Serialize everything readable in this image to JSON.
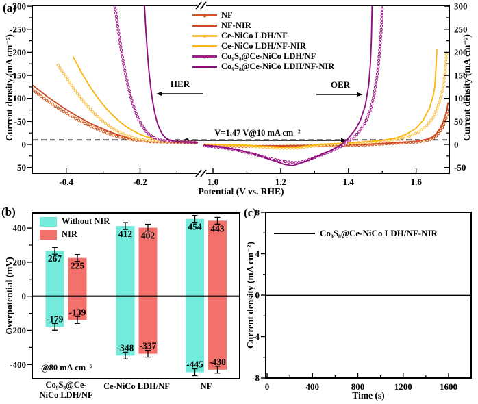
{
  "panel_a": {
    "label": "(a)",
    "xlabel": "Potential (V vs. RHE)",
    "ylabel_left": "Current density (mA cm⁻²)",
    "ylabel_right": "Current density (mA cm⁻²)",
    "her_label": "HER",
    "oer_label": "OER",
    "dashed_label": "V=1.47 V@10 mA cm⁻²",
    "chart_data": {
      "type": "line",
      "x_axis_break": true,
      "x_left_ticks": [
        "-0.4",
        "-0.2"
      ],
      "x_right_ticks": [
        "1.0",
        "1.2",
        "1.4",
        "1.6"
      ],
      "y_left_ticks": [
        "-300",
        "-250",
        "-200",
        "-150",
        "-100",
        "-50",
        "0",
        "50"
      ],
      "y_right_ticks": [
        "300",
        "250",
        "200",
        "150",
        "100",
        "50",
        "0",
        "-50"
      ],
      "x_left_range": [
        -0.49,
        -0.045
      ],
      "x_right_range": [
        0.976,
        1.7
      ],
      "dashed_current_mA": 10,
      "series": [
        {
          "name": "NF",
          "color": "#d0591e",
          "marker": true,
          "her": [
            [
              -0.49,
              -118
            ],
            [
              -0.45,
              -94
            ],
            [
              -0.41,
              -73
            ],
            [
              -0.37,
              -54
            ],
            [
              -0.33,
              -38
            ],
            [
              -0.29,
              -25
            ],
            [
              -0.26,
              -17
            ],
            [
              -0.23,
              -12
            ],
            [
              -0.2,
              -8
            ],
            [
              -0.17,
              -6
            ],
            [
              -0.13,
              -5
            ],
            [
              -0.08,
              -4
            ],
            [
              -0.045,
              -4
            ]
          ],
          "oer": [
            [
              0.976,
              -3
            ],
            [
              1.1,
              -4
            ],
            [
              1.2,
              -4
            ],
            [
              1.3,
              -3
            ],
            [
              1.4,
              -2
            ],
            [
              1.45,
              -1
            ],
            [
              1.5,
              1
            ],
            [
              1.55,
              3
            ],
            [
              1.6,
              5
            ],
            [
              1.63,
              8
            ],
            [
              1.65,
              13
            ],
            [
              1.66,
              19
            ],
            [
              1.67,
              27
            ],
            [
              1.68,
              40
            ],
            [
              1.69,
              60
            ],
            [
              1.694,
              78
            ]
          ]
        },
        {
          "name": "NF-NIR",
          "color": "#cf4a24",
          "marker": false,
          "her": [
            [
              -0.49,
              -128
            ],
            [
              -0.45,
              -103
            ],
            [
              -0.41,
              -81
            ],
            [
              -0.37,
              -61
            ],
            [
              -0.33,
              -44
            ],
            [
              -0.29,
              -30
            ],
            [
              -0.26,
              -21
            ],
            [
              -0.23,
              -14
            ],
            [
              -0.2,
              -10
            ],
            [
              -0.17,
              -7
            ],
            [
              -0.13,
              -5
            ],
            [
              -0.08,
              -4
            ],
            [
              -0.045,
              -3
            ]
          ],
          "oer": [
            [
              0.976,
              -2
            ],
            [
              1.1,
              -3
            ],
            [
              1.2,
              -3
            ],
            [
              1.3,
              -2
            ],
            [
              1.4,
              -1
            ],
            [
              1.45,
              0
            ],
            [
              1.5,
              2
            ],
            [
              1.55,
              4
            ],
            [
              1.6,
              7
            ],
            [
              1.63,
              11
            ],
            [
              1.65,
              17
            ],
            [
              1.66,
              24
            ],
            [
              1.67,
              34
            ],
            [
              1.68,
              50
            ],
            [
              1.69,
              72
            ],
            [
              1.694,
              90
            ]
          ]
        },
        {
          "name": "Ce-NiCo LDH/NF",
          "color": "#fdc246",
          "marker": true,
          "her": [
            [
              -0.422,
              -172
            ],
            [
              -0.4,
              -146
            ],
            [
              -0.38,
              -122
            ],
            [
              -0.36,
              -100
            ],
            [
              -0.34,
              -81
            ],
            [
              -0.32,
              -64
            ],
            [
              -0.3,
              -50
            ],
            [
              -0.28,
              -38
            ],
            [
              -0.26,
              -28
            ],
            [
              -0.24,
              -21
            ],
            [
              -0.22,
              -15
            ],
            [
              -0.2,
              -11
            ],
            [
              -0.18,
              -9
            ],
            [
              -0.15,
              -7
            ],
            [
              -0.11,
              -6
            ],
            [
              -0.045,
              -5
            ]
          ],
          "oer": [
            [
              0.976,
              -1
            ],
            [
              1.05,
              -2
            ],
            [
              1.1,
              -3
            ],
            [
              1.15,
              -6
            ],
            [
              1.2,
              -8
            ],
            [
              1.25,
              -8
            ],
            [
              1.28,
              -5
            ],
            [
              1.32,
              -1
            ],
            [
              1.38,
              1
            ],
            [
              1.44,
              4
            ],
            [
              1.5,
              7
            ],
            [
              1.55,
              12
            ],
            [
              1.58,
              18
            ],
            [
              1.61,
              28
            ],
            [
              1.63,
              40
            ],
            [
              1.65,
              58
            ],
            [
              1.66,
              75
            ],
            [
              1.67,
              95
            ],
            [
              1.68,
              125
            ],
            [
              1.686,
              160
            ],
            [
              1.69,
              200
            ]
          ]
        },
        {
          "name": "Ce-NiCo LDH/NF-NIR",
          "color": "#feb511",
          "marker": false,
          "her": [
            [
              -0.381,
              -190
            ],
            [
              -0.36,
              -158
            ],
            [
              -0.34,
              -131
            ],
            [
              -0.32,
              -107
            ],
            [
              -0.3,
              -86
            ],
            [
              -0.28,
              -68
            ],
            [
              -0.26,
              -53
            ],
            [
              -0.24,
              -40
            ],
            [
              -0.22,
              -30
            ],
            [
              -0.2,
              -22
            ],
            [
              -0.18,
              -16
            ],
            [
              -0.16,
              -12
            ],
            [
              -0.14,
              -9
            ],
            [
              -0.11,
              -7
            ],
            [
              -0.045,
              -5
            ]
          ],
          "oer": [
            [
              0.976,
              0
            ],
            [
              1.05,
              -1
            ],
            [
              1.1,
              -2
            ],
            [
              1.15,
              -4
            ],
            [
              1.2,
              -6
            ],
            [
              1.25,
              -6
            ],
            [
              1.28,
              -3
            ],
            [
              1.32,
              0
            ],
            [
              1.38,
              2
            ],
            [
              1.44,
              5
            ],
            [
              1.5,
              9
            ],
            [
              1.54,
              14
            ],
            [
              1.57,
              22
            ],
            [
              1.6,
              35
            ],
            [
              1.62,
              52
            ],
            [
              1.64,
              80
            ],
            [
              1.65,
              105
            ],
            [
              1.655,
              125
            ],
            [
              1.658,
              160
            ],
            [
              1.661,
              205
            ]
          ]
        },
        {
          "name": "Co₉S₈@Ce-NiCo LDH/NF",
          "color": "#a21f8c",
          "marker": true,
          "her": [
            [
              -0.268,
              -300
            ],
            [
              -0.26,
              -253
            ],
            [
              -0.252,
              -210
            ],
            [
              -0.244,
              -172
            ],
            [
              -0.236,
              -140
            ],
            [
              -0.228,
              -112
            ],
            [
              -0.22,
              -89
            ],
            [
              -0.212,
              -70
            ],
            [
              -0.204,
              -55
            ],
            [
              -0.196,
              -43
            ],
            [
              -0.188,
              -33
            ],
            [
              -0.18,
              -25
            ],
            [
              -0.17,
              -19
            ],
            [
              -0.16,
              -14
            ],
            [
              -0.15,
              -11
            ],
            [
              -0.14,
              -9
            ],
            [
              -0.12,
              -7
            ],
            [
              -0.1,
              -6
            ],
            [
              -0.07,
              -5
            ],
            [
              -0.045,
              -5
            ]
          ],
          "oer": [
            [
              0.976,
              -3
            ],
            [
              1.02,
              -6
            ],
            [
              1.07,
              -12
            ],
            [
              1.12,
              -21
            ],
            [
              1.17,
              -31
            ],
            [
              1.22,
              -38
            ],
            [
              1.25,
              -40
            ],
            [
              1.28,
              -34
            ],
            [
              1.32,
              -23
            ],
            [
              1.36,
              -11
            ],
            [
              1.39,
              1
            ],
            [
              1.41,
              12
            ],
            [
              1.43,
              26
            ],
            [
              1.45,
              48
            ],
            [
              1.465,
              75
            ],
            [
              1.475,
              105
            ],
            [
              1.485,
              150
            ],
            [
              1.492,
              200
            ],
            [
              1.498,
              260
            ],
            [
              1.5,
              300
            ]
          ]
        },
        {
          "name": "Co₉S₈@Ce-NiCo LDH/NF-NIR",
          "color": "#8e0f80",
          "marker": false,
          "her": [
            [
              -0.188,
              -300
            ],
            [
              -0.184,
              -245
            ],
            [
              -0.18,
              -198
            ],
            [
              -0.176,
              -160
            ],
            [
              -0.172,
              -130
            ],
            [
              -0.168,
              -105
            ],
            [
              -0.164,
              -85
            ],
            [
              -0.16,
              -68
            ],
            [
              -0.156,
              -55
            ],
            [
              -0.152,
              -44
            ],
            [
              -0.148,
              -36
            ],
            [
              -0.144,
              -29
            ],
            [
              -0.14,
              -23
            ],
            [
              -0.134,
              -17
            ],
            [
              -0.128,
              -13
            ],
            [
              -0.12,
              -10
            ],
            [
              -0.11,
              -8
            ],
            [
              -0.095,
              -6
            ],
            [
              -0.07,
              -5
            ],
            [
              -0.045,
              -4
            ]
          ],
          "oer": [
            [
              0.976,
              -2
            ],
            [
              1.02,
              -5
            ],
            [
              1.07,
              -11
            ],
            [
              1.12,
              -20
            ],
            [
              1.17,
              -33
            ],
            [
              1.21,
              -43
            ],
            [
              1.235,
              -46
            ],
            [
              1.27,
              -38
            ],
            [
              1.31,
              -25
            ],
            [
              1.35,
              -12
            ],
            [
              1.38,
              0
            ],
            [
              1.4,
              14
            ],
            [
              1.42,
              32
            ],
            [
              1.435,
              52
            ],
            [
              1.45,
              85
            ],
            [
              1.46,
              130
            ],
            [
              1.465,
              175
            ],
            [
              1.468,
              230
            ],
            [
              1.47,
              300
            ]
          ]
        }
      ]
    }
  },
  "panel_b": {
    "label": "(b)",
    "ylabel": "Overpotential (mV)",
    "annotation": "@80 mA cm⁻²",
    "chart_data": {
      "type": "bar",
      "categories": [
        [
          "Co₉S₈@Ce-",
          "NiCo LDH/NF"
        ],
        [
          "Ce-NiCo LDH/NF"
        ],
        [
          "NF"
        ]
      ],
      "y_ticks": [
        "400",
        "200",
        "0",
        "-200",
        "-400"
      ],
      "ylim": [
        -490,
        490
      ],
      "series": [
        {
          "name": "Without NIR",
          "color": "#72ebdd",
          "oer_mV": [
            267,
            412,
            454
          ],
          "her_mV": [
            -179,
            -348,
            -445
          ],
          "err_mV": 20
        },
        {
          "name": "NIR",
          "color": "#f4716b",
          "oer_mV": [
            225,
            402,
            443
          ],
          "her_mV": [
            -139,
            -337,
            -430
          ],
          "err_mV": 20
        }
      ]
    }
  },
  "panel_c": {
    "label": "(c)",
    "xlabel": "Time (s)",
    "ylabel": "Current density (mA cm⁻²)",
    "chart_data": {
      "type": "line",
      "x_ticks": [
        "0",
        "400",
        "800",
        "1200",
        "1600"
      ],
      "y_ticks": [
        "8",
        "4",
        "0",
        "-4",
        "-8"
      ],
      "xlim": [
        0,
        1800
      ],
      "ylim": [
        -8,
        8
      ],
      "series": [
        {
          "name": "Co₉S₈@Ce-NiCo LDH/NF-NIR",
          "color": "#000000",
          "points": [
            [
              0,
              -0.05
            ],
            [
              1800,
              -0.05
            ]
          ]
        }
      ]
    }
  }
}
